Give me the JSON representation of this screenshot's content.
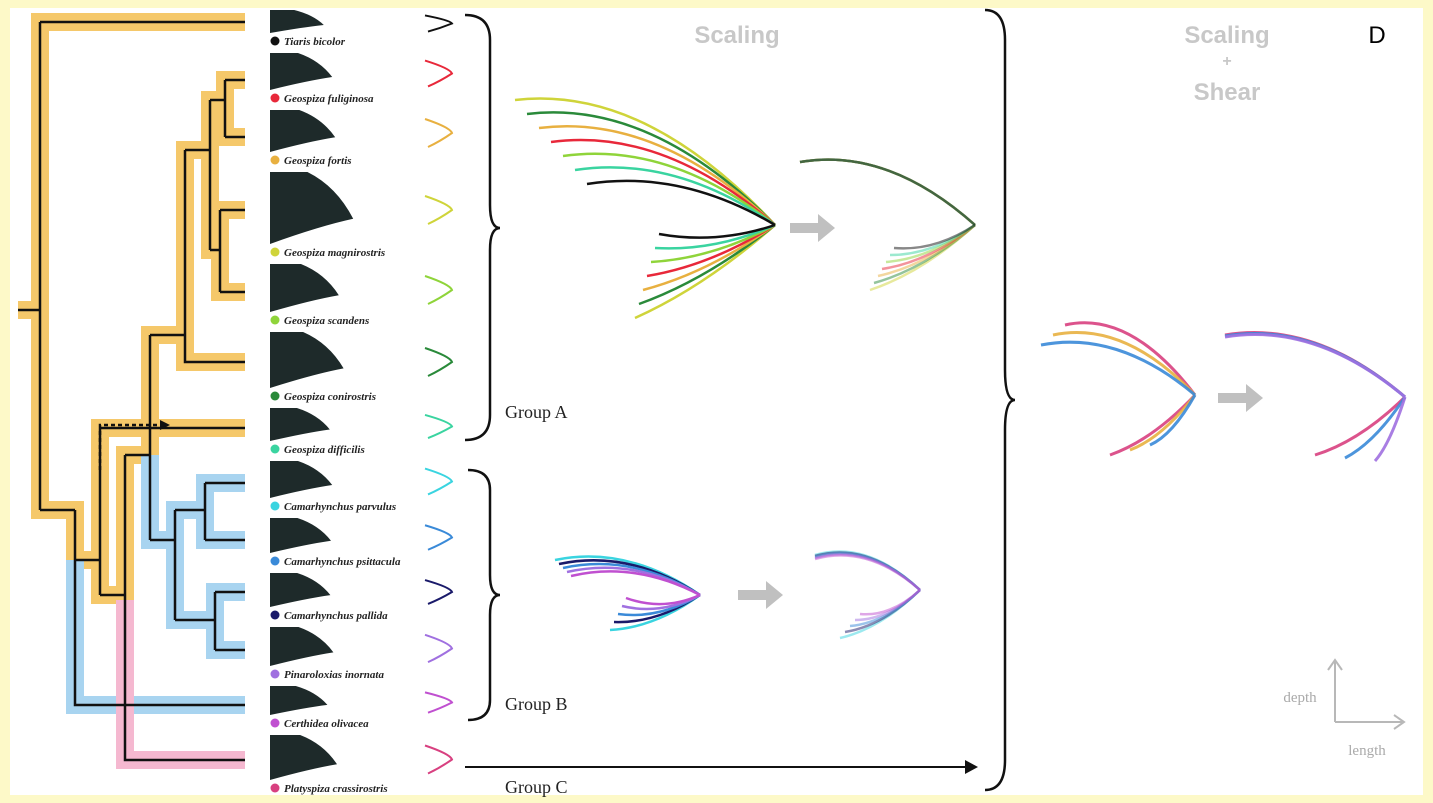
{
  "panel_label": "D",
  "titles": {
    "scaling": "Scaling",
    "scaling_shear": [
      "Scaling",
      "+",
      "Shear"
    ]
  },
  "species": [
    {
      "name": "Tiaris bicolor",
      "color": "#111111"
    },
    {
      "name": "Geospiza fuliginosa",
      "color": "#e8283a"
    },
    {
      "name": "Geospiza fortis",
      "color": "#e8b040"
    },
    {
      "name": "Geospiza magnirostris",
      "color": "#cfd43a"
    },
    {
      "name": "Geospiza scandens",
      "color": "#8fd43a"
    },
    {
      "name": "Geospiza conirostris",
      "color": "#2a8a3a"
    },
    {
      "name": "Geospiza difficilis",
      "color": "#3ad4a0"
    },
    {
      "name": "Camarhynchus parvulus",
      "color": "#3ad4e0"
    },
    {
      "name": "Camarhynchus psittacula",
      "color": "#3a8ad8"
    },
    {
      "name": "Camarhynchus pallida",
      "color": "#1a1a6a"
    },
    {
      "name": "Pinaroloxias inornata",
      "color": "#a070e0"
    },
    {
      "name": "Certhidea olivacea",
      "color": "#c050d0"
    },
    {
      "name": "Platyspiza crassirostris",
      "color": "#d84080"
    }
  ],
  "groups": [
    "Group A",
    "Group B",
    "Group C"
  ],
  "axes": {
    "depth": "depth",
    "length": "length"
  }
}
